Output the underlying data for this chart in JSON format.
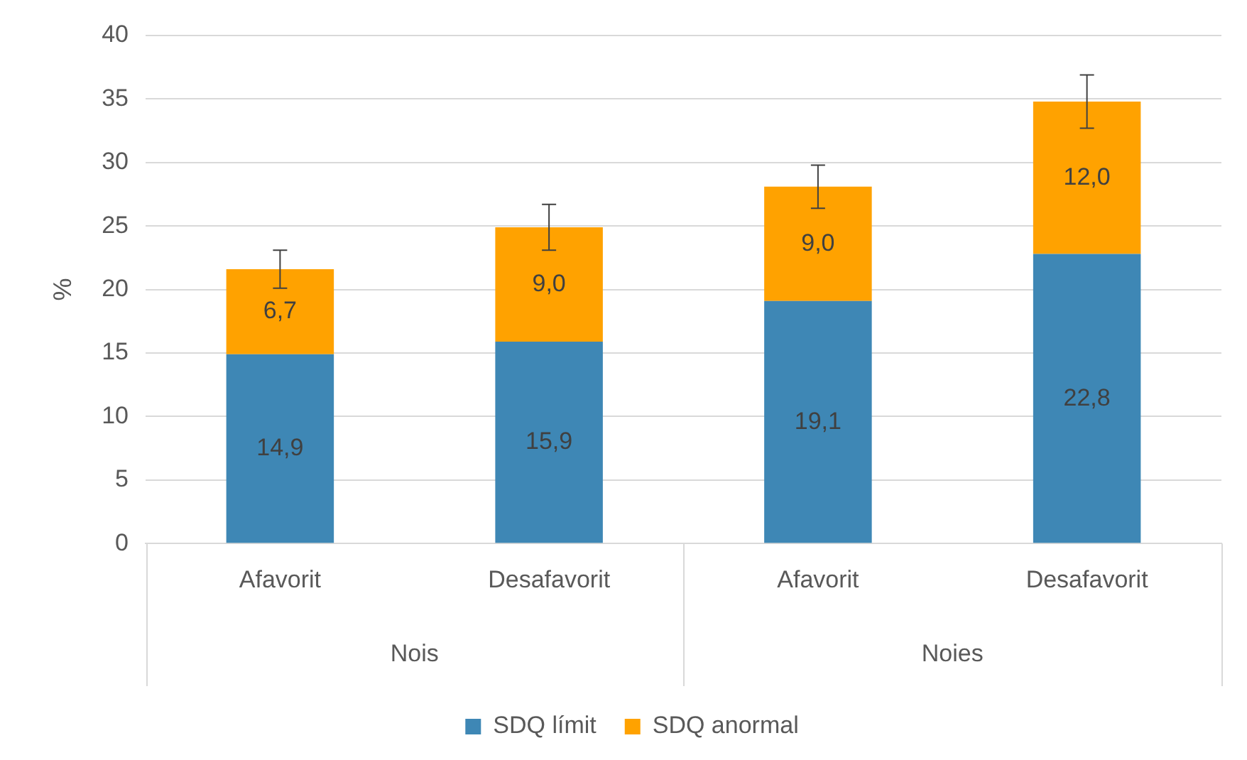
{
  "chart_data": {
    "type": "bar",
    "stacked": true,
    "ylabel": "%",
    "categories": [
      "Afavorit",
      "Desafavorit",
      "Afavorit",
      "Desafavorit"
    ],
    "series": [
      {
        "name": "SDQ límit",
        "color": "#3e87b5",
        "values": [
          14.9,
          15.9,
          19.1,
          22.8
        ],
        "value_labels": [
          "14,9",
          "15,9",
          "19,1",
          "22,8"
        ]
      },
      {
        "name": "SDQ anormal",
        "color": "#ffa200",
        "values": [
          6.7,
          9.0,
          9.0,
          12.0
        ],
        "value_labels": [
          "6,7",
          "9,0",
          "9,0",
          "12,0"
        ],
        "errors": [
          1.5,
          1.8,
          1.7,
          2.1
        ]
      }
    ],
    "annotations": [
      "Nois",
      "Noies"
    ],
    "ylim": [
      0,
      40
    ],
    "yticks": [
      0,
      5,
      10,
      15,
      20,
      25,
      30,
      35,
      40
    ],
    "grid": "y",
    "legend": "bottom"
  }
}
